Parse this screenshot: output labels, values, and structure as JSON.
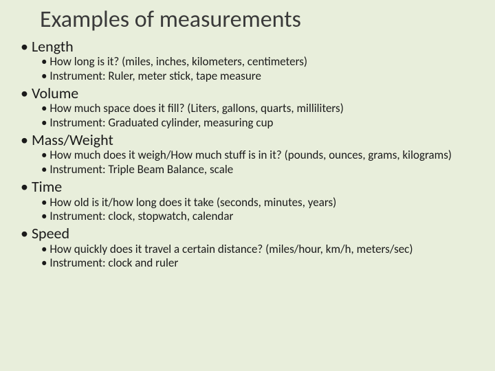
{
  "background_color": "#e8eedb",
  "text_color": "#1a1a1a",
  "title_color": "#3a3a3a",
  "title": "Examples of measurements",
  "title_fontsize": 34,
  "heading_fontsize": 22,
  "sub_fontsize": 17,
  "sections": [
    {
      "heading": "Length",
      "subs": [
        "How long is it? (miles, inches, kilometers, centimeters)",
        "Instrument: Ruler, meter stick, tape measure"
      ]
    },
    {
      "heading": "Volume",
      "subs": [
        "How much space does it fill? (Liters, gallons, quarts, milliliters)",
        "Instrument: Graduated cylinder, measuring cup"
      ]
    },
    {
      "heading": "Mass/Weight",
      "subs": [
        "How much does it weigh/How much stuff is in it? (pounds, ounces, grams, kilograms)",
        "Instrument: Triple Beam Balance, scale"
      ]
    },
    {
      "heading": "Time",
      "subs": [
        "How old is it/how long does it take (seconds, minutes, years)",
        "Instrument: clock, stopwatch, calendar"
      ]
    },
    {
      "heading": "Speed",
      "subs": [
        "How quickly does it travel a certain distance? (miles/hour, km/h, meters/sec)",
        "Instrument: clock and ruler"
      ]
    }
  ]
}
